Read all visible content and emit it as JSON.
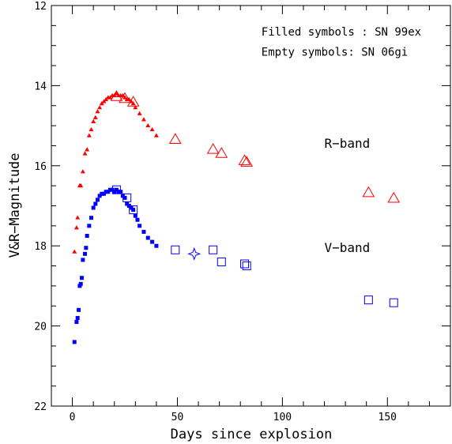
{
  "chart_data": {
    "type": "scatter",
    "xlabel": "Days since explosion",
    "ylabel": "V&R−Magnitude",
    "xlim": [
      -10,
      180
    ],
    "ylim": [
      22,
      12
    ],
    "y_inverted": true,
    "x_ticks": [
      0,
      50,
      100,
      150
    ],
    "x_tick_labels": [
      "0",
      "50",
      "100",
      "150"
    ],
    "y_ticks": [
      12,
      14,
      16,
      18,
      20,
      22
    ],
    "y_tick_labels": [
      "12",
      "14",
      "16",
      "18",
      "20",
      "22"
    ],
    "grid": false,
    "annotations": [
      {
        "text": "Filled symbols : SN 99ex",
        "x": 90,
        "y": 12.75
      },
      {
        "text": "Empty symbols: SN 06gi",
        "x": 90,
        "y": 13.25
      },
      {
        "text": "R−band",
        "x": 120,
        "y": 15.55
      },
      {
        "text": "V−band",
        "x": 120,
        "y": 18.15
      }
    ],
    "series": [
      {
        "band": "R",
        "object": "SN 99ex",
        "marker": "filled-triangle",
        "color": "#ff0000",
        "x": [
          1,
          2,
          2.5,
          3.5,
          4,
          5,
          6,
          7,
          8,
          9,
          10,
          11,
          12,
          13,
          14,
          15,
          16,
          17,
          18,
          19,
          20,
          21,
          22,
          23,
          24,
          25,
          26,
          27,
          28,
          29,
          30,
          32,
          34,
          36,
          38,
          40
        ],
        "y": [
          18.15,
          17.55,
          17.3,
          16.5,
          16.5,
          16.15,
          15.7,
          15.6,
          15.25,
          15.1,
          14.9,
          14.8,
          14.65,
          14.55,
          14.45,
          14.4,
          14.35,
          14.3,
          14.3,
          14.25,
          14.25,
          14.2,
          14.25,
          14.25,
          14.25,
          14.3,
          14.35,
          14.35,
          14.4,
          14.45,
          14.55,
          14.7,
          14.85,
          15.0,
          15.1,
          15.25
        ]
      },
      {
        "band": "R",
        "object": "SN 06gi",
        "marker": "open-triangle",
        "color": "#ff0000",
        "x": [
          21,
          25,
          29,
          49,
          67,
          71,
          82,
          83,
          141,
          153
        ],
        "y": [
          14.28,
          14.33,
          14.42,
          15.35,
          15.6,
          15.7,
          15.88,
          15.92,
          16.68,
          16.82
        ]
      },
      {
        "band": "V",
        "object": "SN 99ex",
        "marker": "filled-square",
        "color": "#0000ff",
        "x": [
          1,
          2,
          2.5,
          3,
          3.5,
          4,
          4.5,
          5,
          6,
          6.5,
          7,
          8,
          9,
          10,
          11,
          12,
          13,
          14,
          15,
          16,
          17,
          18,
          19,
          20,
          21,
          22,
          23,
          24,
          25,
          26,
          27,
          28,
          29,
          30,
          31,
          32,
          34,
          36,
          38,
          40
        ],
        "y": [
          20.4,
          19.9,
          19.8,
          19.6,
          19.0,
          18.95,
          18.8,
          18.35,
          18.2,
          18.05,
          17.75,
          17.5,
          17.3,
          17.05,
          16.95,
          16.85,
          16.75,
          16.7,
          16.7,
          16.65,
          16.65,
          16.6,
          16.6,
          16.65,
          16.6,
          16.65,
          16.65,
          16.75,
          16.8,
          16.95,
          17.0,
          17.05,
          17.1,
          17.25,
          17.35,
          17.5,
          17.65,
          17.8,
          17.9,
          18.0
        ]
      },
      {
        "band": "V",
        "object": "SN 06gi",
        "marker": "open-square",
        "color": "#0000ff",
        "x": [
          21,
          26,
          29,
          49,
          67,
          71,
          82,
          83,
          141,
          153
        ],
        "y": [
          16.6,
          16.8,
          17.1,
          18.1,
          18.1,
          18.4,
          18.45,
          18.5,
          19.35,
          19.42
        ]
      },
      {
        "band": "V",
        "object": "SN 06gi",
        "marker": "open-star",
        "color": "#0000ff",
        "x": [
          58
        ],
        "y": [
          18.2
        ]
      }
    ]
  }
}
